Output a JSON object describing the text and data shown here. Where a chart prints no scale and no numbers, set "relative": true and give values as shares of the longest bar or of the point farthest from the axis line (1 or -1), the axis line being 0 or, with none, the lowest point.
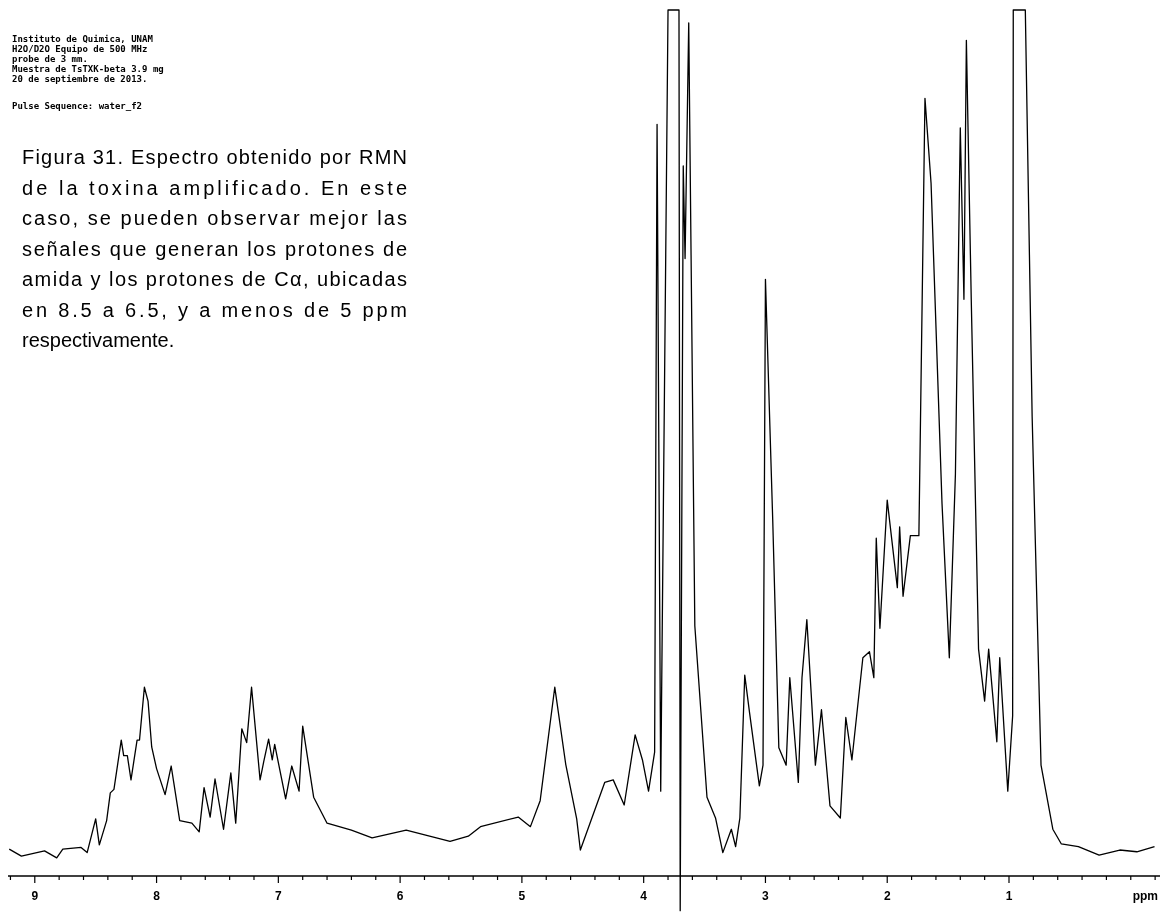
{
  "chart_data": {
    "type": "line",
    "relative": true,
    "xlabel": "ppm",
    "marker": "none",
    "line_style": "solid",
    "tick_labels": "x",
    "annotations": [
      "Instituto de Quimica, UNAM",
      "H2O/D2O Equipo de 500 MHz",
      "probe de 3 mm.",
      "Muestra de TsTXK-beta 3.9 mg",
      "20 de septiembre de 2013.",
      "Pulse Sequence: water_f2",
      "Figura 31. Espectro obtenido por RMN de la toxina amplificado. En este caso, se pueden observar mejor las señales que generan los protones de amida y los protones de Cα, ubicadas en 8.5 a 6.5, y a menos de 5 ppm respectivamente."
    ],
    "xlim": [
      9.22,
      -0.24
    ],
    "xticks": [
      {
        "value": 9.2,
        "label": null
      },
      9,
      {
        "value": 8.8,
        "label": null
      },
      {
        "value": 8.6,
        "label": null
      },
      {
        "value": 8.4,
        "label": null
      },
      {
        "value": 8.2,
        "label": null
      },
      8,
      {
        "value": 7.8,
        "label": null
      },
      {
        "value": 7.6,
        "label": null
      },
      {
        "value": 7.4,
        "label": null
      },
      {
        "value": 7.2,
        "label": null
      },
      7,
      {
        "value": 6.8,
        "label": null
      },
      {
        "value": 6.6,
        "label": null
      },
      {
        "value": 6.4,
        "label": null
      },
      {
        "value": 6.2,
        "label": null
      },
      6,
      {
        "value": 5.8,
        "label": null
      },
      {
        "value": 5.6,
        "label": null
      },
      {
        "value": 5.4,
        "label": null
      },
      {
        "value": 5.2,
        "label": null
      },
      5,
      {
        "value": 4.8,
        "label": null
      },
      {
        "value": 4.6,
        "label": null
      },
      {
        "value": 4.4,
        "label": null
      },
      {
        "value": 4.2,
        "label": null
      },
      4,
      {
        "value": 3.8,
        "label": null
      },
      {
        "value": 3.6,
        "label": null
      },
      {
        "value": 3.4,
        "label": null
      },
      {
        "value": 3.2,
        "label": null
      },
      3,
      {
        "value": 2.8,
        "label": null
      },
      {
        "value": 2.6,
        "label": null
      },
      {
        "value": 2.4,
        "label": null
      },
      {
        "value": 2.2,
        "label": null
      },
      2,
      {
        "value": 1.8,
        "label": null
      },
      {
        "value": 1.6,
        "label": null
      },
      {
        "value": 1.4,
        "label": null
      },
      {
        "value": 1.2,
        "label": null
      },
      1,
      {
        "value": 0.8,
        "label": null
      },
      {
        "value": 0.6,
        "label": null
      },
      {
        "value": 0.4,
        "label": null
      },
      {
        "value": 0.2,
        "label": null
      },
      {
        "value": 0,
        "label": null
      },
      {
        "value": -0.2,
        "label": null
      }
    ],
    "series": [
      {
        "color": "#000000",
        "x": [
          9.21,
          9.11,
          8.92,
          8.82,
          8.77,
          8.62,
          8.57,
          8.5,
          8.47,
          8.41,
          8.38,
          8.35,
          8.29,
          8.27,
          8.24,
          8.21,
          8.16,
          8.14,
          8.1,
          8.07,
          8.04,
          8.0,
          7.93,
          7.88,
          7.86,
          7.81,
          7.71,
          7.65,
          7.61,
          7.56,
          7.52,
          7.45,
          7.39,
          7.35,
          7.3,
          7.26,
          7.22,
          7.15,
          7.12,
          7.08,
          7.05,
          7.03,
          6.94,
          6.89,
          6.83,
          6.8,
          6.71,
          6.6,
          6.4,
          6.23,
          5.95,
          5.59,
          5.44,
          5.34,
          5.03,
          4.93,
          4.85,
          4.73,
          4.64,
          4.55,
          4.52,
          4.32,
          4.25,
          4.16,
          4.07,
          4.01,
          3.96,
          3.91,
          3.89,
          3.86,
          3.8,
          3.71,
          3.7,
          3.675,
          3.66,
          3.63,
          3.58,
          3.48,
          3.41,
          3.35,
          3.28,
          3.245,
          3.21,
          3.17,
          3.13,
          3.05,
          3.02,
          3.0,
          2.94,
          2.89,
          2.83,
          2.8,
          2.73,
          2.7,
          2.66,
          2.59,
          2.54,
          2.47,
          2.385,
          2.34,
          2.29,
          2.2,
          2.146,
          2.11,
          2.09,
          2.06,
          2.0,
          1.917,
          1.898,
          1.87,
          1.81,
          1.74,
          1.69,
          1.64,
          1.55,
          1.49,
          1.44,
          1.4,
          1.37,
          1.35,
          1.31,
          1.25,
          1.2,
          1.167,
          1.1,
          1.076,
          1.01,
          0.97,
          0.965,
          0.866,
          0.81,
          0.737,
          0.64,
          0.57,
          0.43,
          0.26,
          0.09,
          -0.05,
          -0.195
        ],
        "values": [
          0.031,
          0.023,
          0.029,
          0.021,
          0.031,
          0.033,
          0.027,
          0.066,
          0.036,
          0.064,
          0.096,
          0.1,
          0.157,
          0.139,
          0.139,
          0.111,
          0.157,
          0.157,
          0.218,
          0.202,
          0.149,
          0.124,
          0.094,
          0.127,
          0.109,
          0.064,
          0.061,
          0.051,
          0.102,
          0.068,
          0.112,
          0.054,
          0.119,
          0.061,
          0.17,
          0.154,
          0.218,
          0.111,
          0.132,
          0.158,
          0.134,
          0.152,
          0.089,
          0.127,
          0.098,
          0.173,
          0.091,
          0.061,
          0.053,
          0.044,
          0.053,
          0.04,
          0.046,
          0.057,
          0.068,
          0.057,
          0.087,
          0.218,
          0.129,
          0.066,
          0.03,
          0.108,
          0.111,
          0.082,
          0.163,
          0.134,
          0.098,
          0.143,
          0.868,
          0.098,
          1,
          1,
          -0.04,
          0.82,
          0.713,
          0.985,
          0.289,
          0.091,
          0.067,
          0.027,
          0.054,
          0.034,
          0.067,
          0.232,
          0.188,
          0.104,
          0.128,
          0.689,
          0.41,
          0.148,
          0.128,
          0.229,
          0.108,
          0.229,
          0.296,
          0.128,
          0.192,
          0.081,
          0.067,
          0.183,
          0.134,
          0.252,
          0.259,
          0.229,
          0.39,
          0.286,
          0.434,
          0.333,
          0.403,
          0.323,
          0.393,
          0.393,
          0.898,
          0.8,
          0.43,
          0.252,
          0.464,
          0.864,
          0.666,
          0.965,
          0.666,
          0.262,
          0.202,
          0.262,
          0.155,
          0.252,
          0.098,
          0.185,
          1,
          1,
          0.531,
          0.128,
          0.054,
          0.037,
          0.034,
          0.024,
          0.03,
          0.028,
          0.034
        ]
      }
    ]
  }
}
